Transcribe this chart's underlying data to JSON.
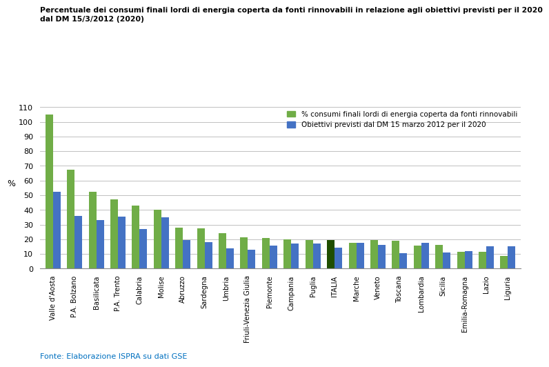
{
  "title_line1": "Percentuale dei consumi finali lordi di energia coperta da fonti rinnovabili in relazione agli obiettivi previsti per il 2020",
  "title_line2": "dal DM 15/3/2012 (2020)",
  "ylabel": "%",
  "fonte": "Fonte: Elaborazione ISPRA su dati GSE",
  "legend_green": "% consumi finali lordi di energia coperta da fonti rinnovabili",
  "legend_blue": "Obiettivi previsti dal DM 15 marzo 2012 per il 2020",
  "categories": [
    "Valle d'Aosta",
    "P.A. Bolzano",
    "Basilicata",
    "P.A. Trento",
    "Calabria",
    "Molise",
    "Abruzzo",
    "Sardegna",
    "Umbria",
    "Friuli-Venezia Giulia",
    "Piemonte",
    "Campania",
    "Puglia",
    "ITALIA",
    "Marche",
    "Veneto",
    "Toscana",
    "Lombardia",
    "Sicilia",
    "Emilia-Romagna",
    "Lazio",
    "Liguria"
  ],
  "green_values": [
    105.0,
    67.5,
    52.5,
    47.0,
    43.0,
    40.0,
    28.0,
    27.5,
    24.0,
    21.5,
    21.0,
    20.0,
    19.5,
    19.5,
    17.5,
    19.5,
    19.0,
    15.5,
    16.0,
    11.5,
    11.5,
    8.5
  ],
  "blue_values": [
    52.5,
    36.0,
    33.0,
    35.5,
    27.0,
    35.0,
    19.5,
    18.0,
    14.0,
    13.0,
    15.5,
    17.0,
    17.0,
    14.5,
    17.5,
    16.0,
    10.5,
    17.5,
    11.0,
    12.0,
    15.0,
    15.0
  ],
  "green_color": "#70AD47",
  "blue_color": "#4472C4",
  "italia_green_color": "#1F4E00",
  "ylim": [
    0,
    110
  ],
  "yticks": [
    0,
    10,
    20,
    30,
    40,
    50,
    60,
    70,
    80,
    90,
    100,
    110
  ],
  "title_color": "#000000",
  "fonte_color": "#0070C0",
  "background_color": "#FFFFFF"
}
